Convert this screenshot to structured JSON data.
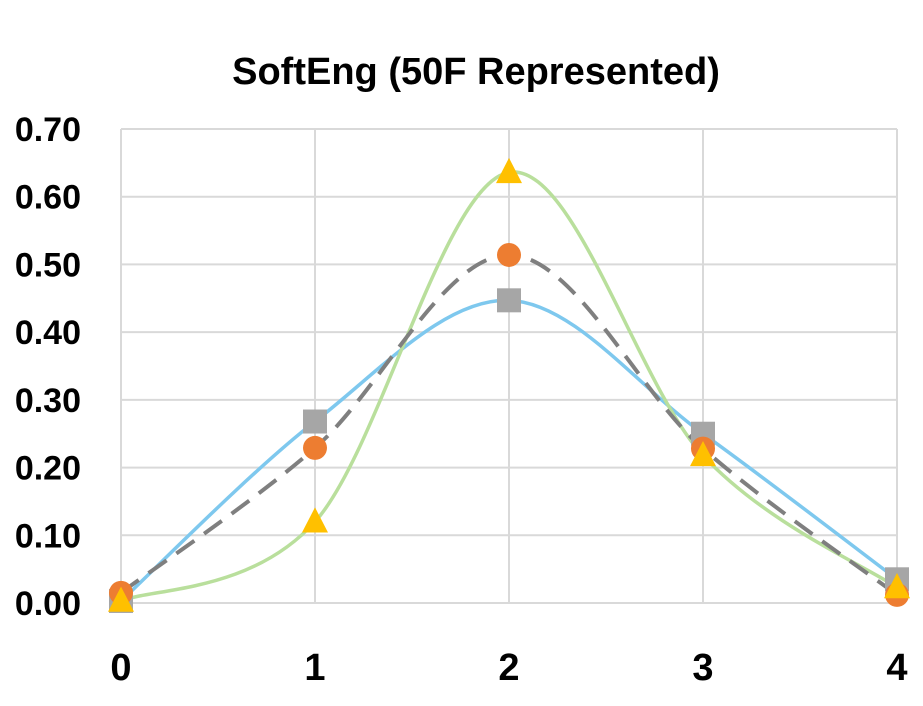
{
  "chart_data": {
    "type": "line",
    "title": "SoftEng (50F Represented)",
    "xlabel": "",
    "ylabel": "",
    "x": [
      0,
      1,
      2,
      3,
      4
    ],
    "x_tick_labels": [
      "0",
      "1",
      "2",
      "3",
      "4"
    ],
    "ylim": [
      0,
      0.7
    ],
    "y_ticks": [
      0,
      0.1,
      0.2,
      0.3,
      0.4,
      0.5,
      0.6,
      0.7
    ],
    "y_tick_labels": [
      "0.00",
      "0.10",
      "0.20",
      "0.30",
      "0.40",
      "0.50",
      "0.60",
      "0.70"
    ],
    "grid": true,
    "smooth": true,
    "legend": "none",
    "series": [
      {
        "values": [
          0.003,
          0.268,
          0.447,
          0.25,
          0.035
        ],
        "color": "#7ec8ee",
        "line_style": "solid",
        "marker": "square",
        "marker_color": "#a6a6a6"
      },
      {
        "values": [
          0.003,
          0.12,
          0.636,
          0.218,
          0.023
        ],
        "color": "#b9df9c",
        "line_style": "solid",
        "marker": "triangle",
        "marker_color": "#ffc000"
      },
      {
        "values": [
          0.015,
          0.229,
          0.514,
          0.228,
          0.012
        ],
        "color": "#7f7f7f",
        "line_style": "dashed",
        "marker": "circle",
        "marker_color": "#ed7d31"
      }
    ]
  }
}
